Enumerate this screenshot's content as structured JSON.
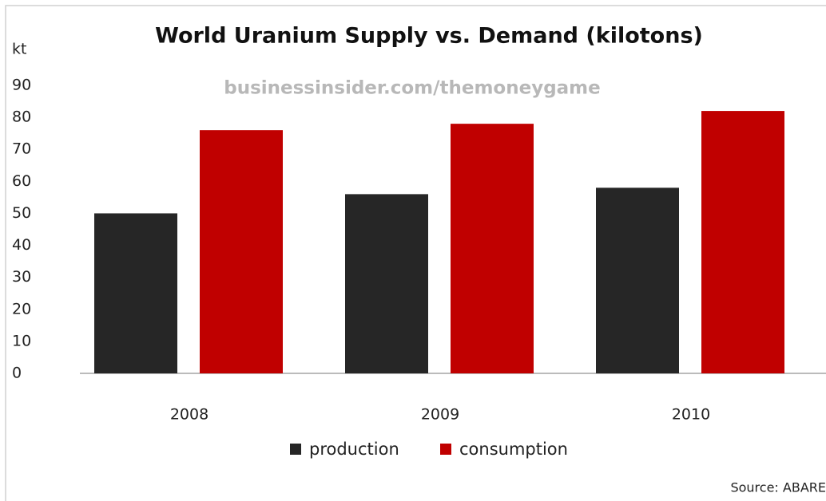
{
  "chart_data": {
    "type": "bar",
    "title": "World Uranium Supply vs. Demand (kilotons)",
    "subtitle": "businessinsider.com/themoneygame",
    "y_label": "kt",
    "source": "Source: ABARE",
    "categories": [
      "2008",
      "2009",
      "2010"
    ],
    "series": [
      {
        "name": "production",
        "color": "#262626",
        "values": [
          50,
          56,
          58
        ]
      },
      {
        "name": "consumption",
        "color": "#c00000",
        "values": [
          76,
          78,
          82
        ]
      }
    ],
    "ylim": [
      0,
      90
    ],
    "yticks": [
      0,
      10,
      20,
      30,
      40,
      50,
      60,
      70,
      80,
      90
    ],
    "grid": false,
    "legend": "bottom"
  }
}
